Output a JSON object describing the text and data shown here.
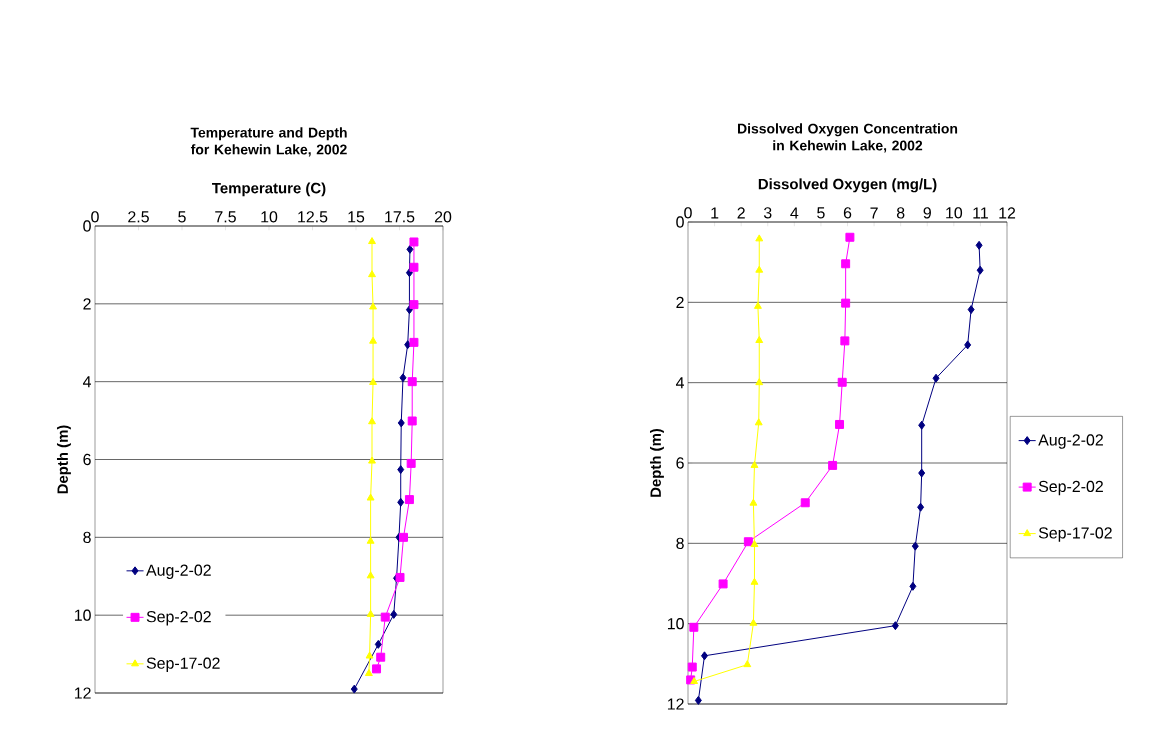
{
  "chart_data": [
    {
      "type": "line",
      "title": "Temperature and Depth for Kehewin Lake, 2002",
      "xlabel": "Temperature (C)",
      "ylabel": "Depth (m)",
      "xlim": [
        0,
        20
      ],
      "xticks": [
        0,
        2.5,
        5,
        7.5,
        10,
        12.5,
        15,
        17.5,
        20
      ],
      "ylim": [
        12,
        0
      ],
      "yticks": [
        0,
        2,
        4,
        6,
        8,
        10,
        12
      ],
      "grid": "y",
      "legend": "bottom left",
      "series": [
        {
          "name": "Aug-2-02",
          "color": "#000080",
          "marker": "diamond",
          "x": [
            18.1,
            18.07,
            18.07,
            17.97,
            17.7,
            17.6,
            17.57,
            17.57,
            17.47,
            17.33,
            17.17,
            16.28,
            14.9
          ],
          "values": [
            0.6,
            1.2,
            2.15,
            3.05,
            3.9,
            5.06,
            6.26,
            7.1,
            8.0,
            9.05,
            9.98,
            10.75,
            11.9
          ]
        },
        {
          "name": "Sep-2-02",
          "color": "#ff00ff",
          "marker": "square",
          "x": [
            18.33,
            18.33,
            18.33,
            18.33,
            18.23,
            18.23,
            18.17,
            18.07,
            17.73,
            17.53,
            16.68,
            16.42,
            16.18
          ],
          "values": [
            0.41,
            1.06,
            2.02,
            2.99,
            4.0,
            5.01,
            6.1,
            7.03,
            8.0,
            9.03,
            10.05,
            11.08,
            11.38
          ]
        },
        {
          "name": "Sep-17-02",
          "color": "#ffff00",
          "marker": "triangle",
          "x": [
            15.92,
            15.92,
            15.98,
            15.98,
            15.98,
            15.92,
            15.92,
            15.84,
            15.84,
            15.84,
            15.84,
            15.78,
            15.74
          ],
          "values": [
            0.4,
            1.25,
            2.08,
            2.96,
            4.02,
            5.03,
            6.04,
            6.99,
            8.1,
            8.99,
            9.98,
            11.05,
            11.5
          ]
        }
      ]
    },
    {
      "type": "line",
      "title": "Dissolved Oxygen Concentration in Kehewin Lake, 2002",
      "xlabel": "Dissolved Oxygen (mg/L)",
      "ylabel": "Depth (m)",
      "xlim": [
        0,
        12
      ],
      "xticks": [
        0,
        1,
        2,
        3,
        4,
        5,
        6,
        7,
        8,
        9,
        10,
        11,
        12
      ],
      "ylim": [
        12,
        0
      ],
      "yticks": [
        0,
        2,
        4,
        6,
        8,
        10,
        12
      ],
      "grid": "y",
      "legend": "right",
      "series": [
        {
          "name": "Aug-2-02",
          "color": "#000080",
          "marker": "diamond",
          "x": [
            10.95,
            10.99,
            10.65,
            10.52,
            9.33,
            8.79,
            8.79,
            8.75,
            8.55,
            8.46,
            7.8,
            0.62,
            0.39
          ],
          "values": [
            0.58,
            1.2,
            2.18,
            3.06,
            3.89,
            5.06,
            6.25,
            7.1,
            8.07,
            9.07,
            10.05,
            10.8,
            11.91
          ]
        },
        {
          "name": "Sep-2-02",
          "color": "#ff00ff",
          "marker": "square",
          "x": [
            6.09,
            5.93,
            5.93,
            5.9,
            5.8,
            5.7,
            5.44,
            4.41,
            2.27,
            1.32,
            0.22,
            0.16,
            0.1
          ],
          "values": [
            0.38,
            1.04,
            2.02,
            2.96,
            3.99,
            5.04,
            6.06,
            6.99,
            7.96,
            9.01,
            10.09,
            11.08,
            11.4
          ]
        },
        {
          "name": "Sep-17-02",
          "color": "#ffff00",
          "marker": "triangle",
          "x": [
            2.68,
            2.68,
            2.63,
            2.68,
            2.68,
            2.66,
            2.5,
            2.46,
            2.5,
            2.5,
            2.46,
            2.23,
            0.23
          ],
          "values": [
            0.42,
            1.2,
            2.1,
            2.95,
            4.0,
            5.0,
            6.06,
            7.0,
            8.03,
            8.97,
            9.99,
            11.02,
            11.44
          ]
        }
      ]
    }
  ]
}
